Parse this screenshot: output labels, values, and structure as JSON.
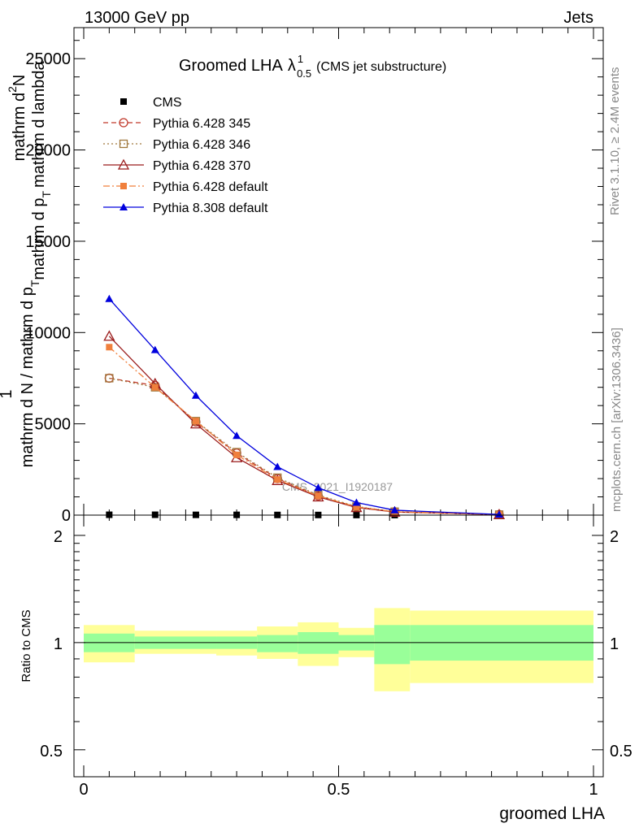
{
  "header": {
    "energy": "13000 GeV pp",
    "process": "Jets"
  },
  "side_labels": {
    "rivet": "Rivet 3.1.10, ≥ 2.4M events",
    "mcplots": "mcplots.cern.ch [arXiv:1306.3436]"
  },
  "watermark": "CMS_2021_I1920187",
  "chart_data": [
    {
      "type": "line",
      "title": {
        "main": "Groomed LHA",
        "lambda": "λ",
        "sup": "1",
        "sub": "0.5",
        "note": "(CMS jet substructure)"
      },
      "ylabel": {
        "line1_prefix": "1",
        "line1": "mathrm d N / mathrm d p",
        "line1_sub": "T",
        "line2": "mathrm d",
        "line2_sup": "2",
        "line2_rest": "N",
        "line3": "mathrm d p",
        "line3_sub": "T",
        "line3_rest": "mathrm d lambda"
      },
      "xlim": [
        0,
        1
      ],
      "ylim": [
        0,
        26700
      ],
      "yticks": [
        {
          "value": 0,
          "label": "0"
        },
        {
          "value": 5000,
          "label": "5000"
        },
        {
          "value": 10000,
          "label": "10000"
        },
        {
          "value": 15000,
          "label": "15000"
        },
        {
          "value": 20000,
          "label": "20000"
        },
        {
          "value": 25000,
          "label": "25000"
        }
      ],
      "x": [
        0.05,
        0.14,
        0.22,
        0.3,
        0.38,
        0.46,
        0.535,
        0.61,
        0.815
      ],
      "series": [
        {
          "name": "CMS",
          "color": "#000000",
          "marker": "square-filled",
          "line": "none",
          "values": [
            20,
            20,
            15,
            15,
            10,
            8,
            5,
            3,
            1
          ]
        },
        {
          "name": "Pythia 6.428 345",
          "color": "#c0392b",
          "marker": "circle-open",
          "line": "dashed",
          "values": [
            7500,
            7100,
            5100,
            3400,
            2000,
            1050,
            450,
            180,
            30
          ]
        },
        {
          "name": "Pythia 6.428 346",
          "color": "#a0783c",
          "marker": "square-open",
          "line": "dotted",
          "values": [
            7500,
            7000,
            5150,
            3450,
            2050,
            1100,
            470,
            190,
            30
          ]
        },
        {
          "name": "Pythia 6.428 370",
          "color": "#9b1c1c",
          "marker": "triangle-open",
          "line": "solid",
          "values": [
            9800,
            7200,
            5000,
            3150,
            1900,
            1000,
            420,
            170,
            30
          ]
        },
        {
          "name": "Pythia 6.428 default",
          "color": "#f07f3c",
          "marker": "square-filled",
          "line": "dashdot",
          "values": [
            9200,
            7000,
            5150,
            3300,
            1950,
            1050,
            450,
            180,
            30
          ]
        },
        {
          "name": "Pythia 8.308 default",
          "color": "#0000dd",
          "marker": "triangle-filled",
          "line": "solid",
          "values": [
            11850,
            9050,
            6550,
            4350,
            2650,
            1500,
            690,
            270,
            40
          ]
        }
      ]
    },
    {
      "type": "area",
      "ylabel": "Ratio to CMS",
      "xlabel": "groomed LHA",
      "xlim": [
        0,
        1
      ],
      "ylim": [
        0.42,
        2.28
      ],
      "log_y": true,
      "yticks": [
        {
          "value": 0.5,
          "label": "0.5"
        },
        {
          "value": 1,
          "label": "1"
        },
        {
          "value": 2,
          "label": "2"
        }
      ],
      "xticks": [
        {
          "value": 0,
          "label": "0"
        },
        {
          "value": 0.5,
          "label": "0.5"
        },
        {
          "value": 1,
          "label": "1"
        }
      ],
      "bands": [
        {
          "x0": 0.0,
          "x1": 0.1,
          "green": [
            0.94,
            1.06
          ],
          "yellow": [
            0.88,
            1.12
          ]
        },
        {
          "x0": 0.1,
          "x1": 0.26,
          "green": [
            0.96,
            1.04
          ],
          "yellow": [
            0.93,
            1.08
          ]
        },
        {
          "x0": 0.26,
          "x1": 0.34,
          "green": [
            0.96,
            1.04
          ],
          "yellow": [
            0.92,
            1.08
          ]
        },
        {
          "x0": 0.34,
          "x1": 0.42,
          "green": [
            0.94,
            1.05
          ],
          "yellow": [
            0.9,
            1.11
          ]
        },
        {
          "x0": 0.42,
          "x1": 0.5,
          "green": [
            0.93,
            1.07
          ],
          "yellow": [
            0.86,
            1.14
          ]
        },
        {
          "x0": 0.5,
          "x1": 0.57,
          "green": [
            0.95,
            1.05
          ],
          "yellow": [
            0.91,
            1.1
          ]
        },
        {
          "x0": 0.57,
          "x1": 0.64,
          "green": [
            0.87,
            1.12
          ],
          "yellow": [
            0.73,
            1.25
          ]
        },
        {
          "x0": 0.64,
          "x1": 1.0,
          "green": [
            0.89,
            1.12
          ],
          "yellow": [
            0.77,
            1.23
          ]
        }
      ],
      "reference_line": 1
    }
  ]
}
